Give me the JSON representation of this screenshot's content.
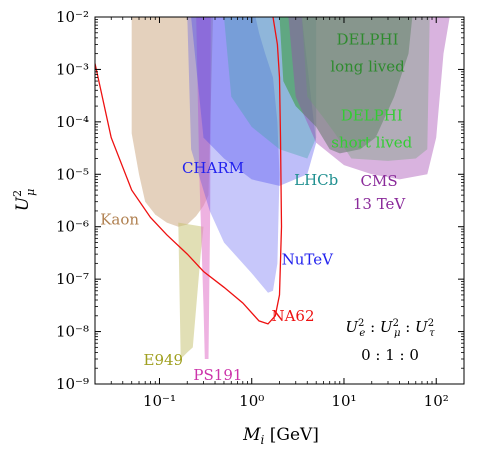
{
  "chart_data": {
    "type": "area",
    "xlabel": "M_i [GeV]",
    "ylabel": "U_μ²",
    "x_scale": "log",
    "y_scale": "log",
    "xlim": [
      0.02,
      200
    ],
    "ylim": [
      1e-09,
      0.01
    ],
    "grid": false,
    "x_ticks": [
      0.1,
      1,
      10,
      100
    ],
    "x_tick_labels": [
      "10⁻¹",
      "10⁰",
      "10¹",
      "10²"
    ],
    "y_ticks": [
      1e-09,
      1e-08,
      1e-07,
      1e-06,
      1e-05,
      0.0001,
      0.001,
      0.01
    ],
    "y_tick_labels": [
      "10⁻⁹",
      "10⁻⁸",
      "10⁻⁷",
      "10⁻⁶",
      "10⁻⁵",
      "10⁻⁴",
      "10⁻³",
      "10⁻²"
    ],
    "coupling_ratio": {
      "line1": "U_e² : U_μ² : U_τ²",
      "line2": "0 : 1 : 0"
    },
    "regions": [
      {
        "name": "Kaon",
        "label_lines": [
          "Kaon"
        ],
        "color": "#c49a6c",
        "opacity": 0.45,
        "points": [
          [
            0.05,
            0.01
          ],
          [
            0.05,
            6e-05
          ],
          [
            0.06,
            1e-05
          ],
          [
            0.07,
            3e-06
          ],
          [
            0.09,
            1.7e-06
          ],
          [
            0.12,
            1.2e-06
          ],
          [
            0.16,
            1e-06
          ],
          [
            0.2,
            1.1e-06
          ],
          [
            0.25,
            1.6e-06
          ],
          [
            0.3,
            2.5e-06
          ],
          [
            0.34,
            4e-06
          ],
          [
            0.38,
            0.01
          ]
        ]
      },
      {
        "name": "E949",
        "label_lines": [
          "E949"
        ],
        "color": "#c4c06c",
        "opacity": 0.5,
        "points": [
          [
            0.16,
            1.2e-06
          ],
          [
            0.17,
            3e-09
          ],
          [
            0.2,
            4e-09
          ],
          [
            0.23,
            5e-09
          ],
          [
            0.28,
            3e-07
          ],
          [
            0.3,
            1e-06
          ]
        ]
      },
      {
        "name": "PS191",
        "label_lines": [
          "PS191"
        ],
        "color": "#e072c8",
        "opacity": 0.55,
        "points": [
          [
            0.25,
            0.01
          ],
          [
            0.27,
            1e-05
          ],
          [
            0.3,
            3e-08
          ],
          [
            0.31,
            3e-09
          ],
          [
            0.34,
            3e-09
          ],
          [
            0.355,
            2e-06
          ],
          [
            0.36,
            0.01
          ]
        ]
      },
      {
        "name": "CHARM",
        "label_lines": [
          "CHARM"
        ],
        "color": "#4444ee",
        "opacity": 0.3,
        "points": [
          [
            0.2,
            0.01
          ],
          [
            0.22,
            3e-05
          ],
          [
            0.35,
            2e-06
          ],
          [
            0.5,
            5e-07
          ],
          [
            1,
            1.3e-07
          ],
          [
            1.5,
            5.5e-08
          ],
          [
            1.7,
            6e-08
          ],
          [
            1.9,
            2e-07
          ],
          [
            2,
            1e-05
          ],
          [
            1.9,
            0.0001
          ],
          [
            1.7,
            0.0007
          ],
          [
            1.4,
            0.002
          ],
          [
            1.2,
            0.005
          ],
          [
            1.1,
            0.01
          ]
        ]
      },
      {
        "name": "NuTeV",
        "label_lines": [
          "NuTeV"
        ],
        "color": "#4444ee",
        "opacity": 0.35,
        "points": [
          [
            0.22,
            0.01
          ],
          [
            0.3,
            5e-05
          ],
          [
            0.5,
            2e-05
          ],
          [
            1,
            8e-06
          ],
          [
            2,
            6e-06
          ],
          [
            4,
            1e-05
          ],
          [
            5,
            4e-05
          ],
          [
            3.5,
            0.01
          ]
        ]
      },
      {
        "name": "LHCb",
        "label_lines": [
          "LHCb"
        ],
        "color": "#3aa8a0",
        "opacity": 0.35,
        "points": [
          [
            0.5,
            0.01
          ],
          [
            0.6,
            0.0003
          ],
          [
            1,
            8e-05
          ],
          [
            2,
            3e-05
          ],
          [
            4,
            2e-05
          ],
          [
            5,
            5e-05
          ],
          [
            5,
            0.01
          ]
        ]
      },
      {
        "name": "DELPHI long lived",
        "label_lines": [
          "DELPHI",
          "long lived"
        ],
        "color": "#3a9a3a",
        "opacity": 0.55,
        "points": [
          [
            2,
            0.01
          ],
          [
            2.2,
            0.0006
          ],
          [
            3,
            0.0002
          ],
          [
            5,
            8e-05
          ],
          [
            7,
            3e-05
          ],
          [
            9,
            2.5e-05
          ],
          [
            15,
            3e-05
          ],
          [
            22,
            5e-05
          ],
          [
            35,
            0.0003
          ],
          [
            50,
            0.002
          ],
          [
            55,
            0.01
          ]
        ]
      },
      {
        "name": "DELPHI short lived",
        "label_lines": [
          "DELPHI",
          "short lived"
        ],
        "color": "#44dd44",
        "opacity": 0.35,
        "points": [
          [
            3.5,
            0.01
          ],
          [
            4,
            0.0003
          ],
          [
            6,
            0.00012
          ],
          [
            8,
            6e-05
          ],
          [
            12,
            2e-05
          ],
          [
            30,
            1.8e-05
          ],
          [
            60,
            2e-05
          ],
          [
            80,
            3e-05
          ],
          [
            85,
            0.01
          ]
        ]
      },
      {
        "name": "CMS 13 TeV",
        "label_lines": [
          "CMS",
          "13 TeV"
        ],
        "color": "#a040b0",
        "opacity": 0.4,
        "points": [
          [
            2.5,
            0.01
          ],
          [
            3,
            0.0003
          ],
          [
            5,
            4e-05
          ],
          [
            10,
            1.5e-05
          ],
          [
            20,
            1e-05
          ],
          [
            40,
            8e-06
          ],
          [
            80,
            1e-05
          ],
          [
            100,
            5e-05
          ],
          [
            120,
            0.002
          ],
          [
            140,
            0.01
          ]
        ]
      }
    ],
    "lines": [
      {
        "name": "NA62",
        "label_lines": [
          "NA62"
        ],
        "color": "#ee1111",
        "points": [
          [
            0.02,
            0.0013
          ],
          [
            0.03,
            5e-05
          ],
          [
            0.05,
            5e-06
          ],
          [
            0.08,
            1.5e-06
          ],
          [
            0.12,
            7e-07
          ],
          [
            0.2,
            3e-07
          ],
          [
            0.3,
            1.4e-07
          ],
          [
            0.5,
            7e-08
          ],
          [
            0.8,
            3.5e-08
          ],
          [
            1.2,
            1.6e-08
          ],
          [
            1.5,
            1.4e-08
          ],
          [
            1.8,
            2e-08
          ],
          [
            2,
            5e-08
          ],
          [
            2.1,
            1e-06
          ],
          [
            2.05,
            5e-05
          ],
          [
            2,
            0.0007
          ],
          [
            1.9,
            0.003
          ],
          [
            1.7,
            0.01
          ]
        ]
      }
    ]
  }
}
